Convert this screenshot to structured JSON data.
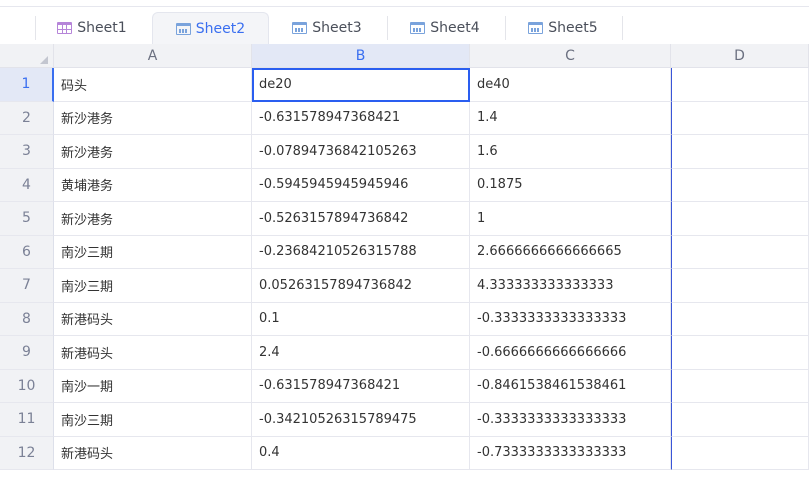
{
  "tabs": [
    {
      "label": "Sheet1",
      "icon": "table-grid-icon",
      "active": false
    },
    {
      "label": "Sheet2",
      "icon": "table-chart-icon",
      "active": true
    },
    {
      "label": "Sheet3",
      "icon": "table-chart-icon",
      "active": false
    },
    {
      "label": "Sheet4",
      "icon": "table-chart-icon",
      "active": false
    },
    {
      "label": "Sheet5",
      "icon": "table-chart-icon",
      "active": false
    }
  ],
  "columns": [
    "A",
    "B",
    "C",
    "D"
  ],
  "selected_cell": "B1",
  "accent_color": "#3a6ff0",
  "rows": [
    {
      "n": "1",
      "a": "码头",
      "b": "de20",
      "c": "de40"
    },
    {
      "n": "2",
      "a": "新沙港务",
      "b": "-0.631578947368421",
      "c": "1.4"
    },
    {
      "n": "3",
      "a": "新沙港务",
      "b": "-0.07894736842105263",
      "c": "1.6"
    },
    {
      "n": "4",
      "a": "黄埔港务",
      "b": "-0.5945945945945946",
      "c": "0.1875"
    },
    {
      "n": "5",
      "a": "新沙港务",
      "b": "-0.5263157894736842",
      "c": "1"
    },
    {
      "n": "6",
      "a": "南沙三期",
      "b": "-0.23684210526315788",
      "c": "2.6666666666666665"
    },
    {
      "n": "7",
      "a": "南沙三期",
      "b": "0.05263157894736842",
      "c": "4.333333333333333"
    },
    {
      "n": "8",
      "a": "新港码头",
      "b": "0.1",
      "c": "-0.3333333333333333"
    },
    {
      "n": "9",
      "a": "新港码头",
      "b": "2.4",
      "c": "-0.6666666666666666"
    },
    {
      "n": "10",
      "a": "南沙一期",
      "b": "-0.631578947368421",
      "c": "-0.8461538461538461"
    },
    {
      "n": "11",
      "a": "南沙三期",
      "b": "-0.34210526315789475",
      "c": "-0.3333333333333333"
    },
    {
      "n": "12",
      "a": "新港码头",
      "b": "0.4",
      "c": "-0.7333333333333333"
    }
  ]
}
